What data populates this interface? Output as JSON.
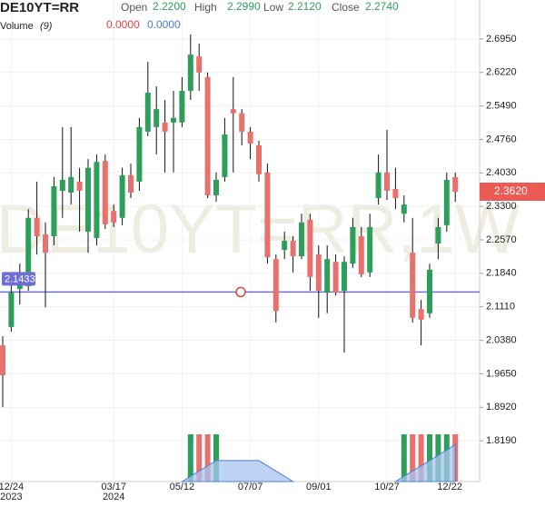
{
  "header": {
    "symbol": "DE10YT=RR",
    "open_label": "Open",
    "open": "2.2200",
    "high_label": "High",
    "high": "2.2990",
    "low_label": "Low",
    "low": "2.2120",
    "close_label": "Close",
    "close": "2.2740",
    "volume_label": "Volume",
    "volume_period": "(9)",
    "volume_value": "0.0000",
    "volume_ma_value": "0.0000"
  },
  "chart_data": {
    "type": "candlestick",
    "watermark": "DE10YT=RR,1W",
    "categories": [
      null,
      "12/24\n2023",
      null,
      null,
      null,
      null,
      null,
      null,
      null,
      null,
      null,
      null,
      null,
      "03/17\n2024",
      null,
      null,
      null,
      null,
      null,
      null,
      null,
      "05/12",
      null,
      null,
      null,
      null,
      null,
      null,
      null,
      "07/07",
      null,
      null,
      null,
      null,
      null,
      null,
      null,
      "09/01",
      null,
      null,
      null,
      null,
      null,
      null,
      null,
      "10/27",
      null,
      null,
      null,
      null,
      null,
      null,
      null,
      "12/22"
    ],
    "open": [
      2.027,
      2.067,
      2.15,
      2.156,
      2.305,
      2.269,
      2.265,
      2.364,
      2.36,
      2.384,
      2.275,
      2.261,
      2.429,
      2.32,
      2.305,
      2.398,
      2.384,
      2.493,
      2.503,
      2.513,
      2.513,
      2.513,
      2.582,
      2.657,
      2.612,
      2.354,
      2.394,
      2.542,
      2.533,
      2.493,
      2.463,
      2.404,
      2.215,
      2.235,
      2.255,
      2.221,
      2.301,
      2.225,
      2.142,
      2.209,
      2.146,
      2.205,
      2.265,
      2.186,
      2.348,
      2.404,
      2.368,
      2.314,
      2.229,
      2.106,
      2.097,
      2.249,
      2.289,
      2.394
    ],
    "high": [
      2.047,
      2.166,
      2.205,
      2.324,
      2.384,
      2.295,
      2.394,
      2.503,
      2.503,
      2.414,
      2.433,
      2.443,
      2.443,
      2.334,
      2.414,
      2.423,
      2.523,
      2.645,
      2.592,
      2.562,
      2.582,
      2.612,
      2.705,
      2.685,
      2.622,
      2.404,
      2.523,
      2.612,
      2.542,
      2.503,
      2.473,
      2.423,
      2.225,
      2.275,
      2.265,
      2.314,
      2.314,
      2.245,
      2.245,
      2.225,
      2.221,
      2.305,
      2.285,
      2.314,
      2.443,
      2.497,
      2.414,
      2.354,
      2.305,
      2.126,
      2.205,
      2.305,
      2.404,
      2.404
    ],
    "low": [
      1.892,
      2.057,
      2.116,
      2.146,
      2.225,
      2.11,
      2.245,
      2.305,
      2.334,
      2.275,
      2.229,
      2.245,
      2.281,
      2.285,
      2.289,
      2.348,
      2.364,
      2.483,
      2.443,
      2.404,
      2.404,
      2.503,
      2.562,
      2.582,
      2.348,
      2.34,
      2.384,
      2.404,
      2.463,
      2.433,
      2.384,
      2.205,
      2.077,
      2.215,
      2.186,
      2.215,
      2.146,
      2.087,
      2.097,
      2.136,
      2.011,
      2.196,
      2.176,
      2.176,
      2.334,
      2.344,
      2.324,
      2.295,
      2.077,
      2.027,
      2.087,
      2.215,
      2.275,
      2.34
    ],
    "close": [
      1.962,
      2.142,
      2.186,
      2.305,
      2.265,
      2.229,
      2.374,
      2.388,
      2.394,
      2.364,
      2.414,
      2.427,
      2.291,
      2.295,
      2.398,
      2.36,
      2.503,
      2.578,
      2.542,
      2.493,
      2.523,
      2.582,
      2.661,
      2.622,
      2.354,
      2.388,
      2.487,
      2.533,
      2.493,
      2.467,
      2.4,
      2.219,
      2.102,
      2.255,
      2.221,
      2.295,
      2.176,
      2.146,
      2.215,
      2.142,
      2.209,
      2.285,
      2.182,
      2.285,
      2.404,
      2.364,
      2.348,
      2.334,
      2.087,
      2.083,
      2.192,
      2.285,
      2.388,
      2.362
    ],
    "up_color": "#2e9e5b",
    "down_color": "#e8716d",
    "ylim": [
      1.73,
      2.78
    ],
    "yticks": [
      {
        "value": 2.695,
        "label": "2.6950"
      },
      {
        "value": 2.622,
        "label": "2.6220"
      },
      {
        "value": 2.549,
        "label": "2.5490"
      },
      {
        "value": 2.476,
        "label": "2.4760"
      },
      {
        "value": 2.403,
        "label": "2.4030"
      },
      {
        "value": 2.33,
        "label": "2.3300"
      },
      {
        "value": 2.257,
        "label": "2.2570"
      },
      {
        "value": 2.184,
        "label": "2.1840"
      },
      {
        "value": 2.111,
        "label": "2.1110"
      },
      {
        "value": 2.038,
        "label": "2.0380"
      },
      {
        "value": 1.965,
        "label": "1.9650"
      },
      {
        "value": 1.892,
        "label": "1.8920"
      },
      {
        "value": 1.819,
        "label": "1.8190"
      }
    ],
    "grid": true,
    "last_price": {
      "value": 2.362,
      "label": "2.3620",
      "color": "#ec5a55"
    },
    "hline": {
      "value": 2.1433,
      "label": "2.1433",
      "color": "#6f6fd8"
    },
    "volume": {
      "ylim": [
        0,
        1
      ],
      "color": "#4a7fd8",
      "fill": "#a9c6f2",
      "values": [
        0,
        0,
        0,
        0,
        0,
        0,
        0,
        0,
        0,
        0,
        0,
        0,
        0,
        0,
        0,
        0,
        0,
        0,
        0,
        0,
        0,
        0,
        1,
        1,
        1,
        1,
        0,
        0,
        0,
        0,
        0,
        0,
        0,
        0,
        0,
        0,
        0,
        0,
        0,
        0,
        0,
        0,
        0,
        0,
        0,
        0,
        0,
        1,
        1,
        1,
        1,
        1,
        1,
        1
      ],
      "ma": [
        null,
        null,
        null,
        null,
        null,
        null,
        null,
        null,
        null,
        null,
        null,
        null,
        null,
        null,
        null,
        null,
        null,
        null,
        null,
        null,
        null,
        0,
        0.111,
        0.222,
        0.333,
        0.444,
        0.444,
        0.444,
        0.444,
        0.444,
        0.444,
        0.333,
        0.222,
        0.111,
        0,
        null,
        null,
        null,
        null,
        null,
        null,
        null,
        null,
        null,
        null,
        null,
        0,
        0.111,
        0.222,
        0.333,
        0.444,
        0.556,
        0.667,
        0.778
      ]
    }
  }
}
